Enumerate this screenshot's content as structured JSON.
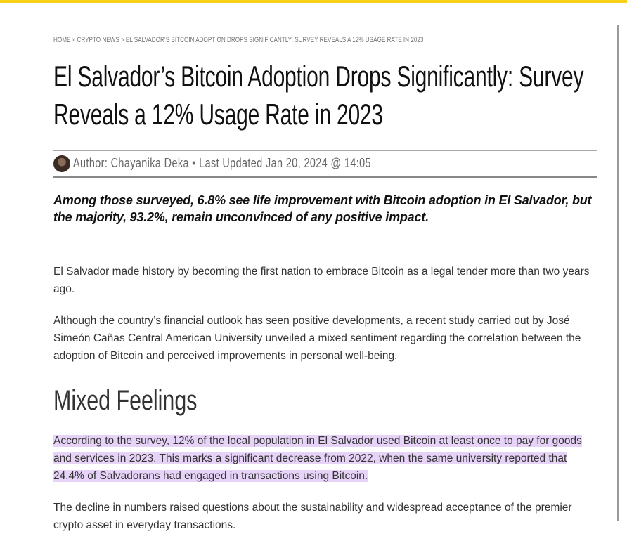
{
  "breadcrumb": {
    "items": [
      "HOME",
      "CRYPTO NEWS",
      "EL SALVADOR’S BITCOIN ADOPTION DROPS SIGNIFICANTLY: SURVEY REVEALS A 12% USAGE RATE IN 2023"
    ],
    "separator": "»"
  },
  "article": {
    "title": "El Salvador’s Bitcoin Adoption Drops Significantly: Survey Reveals a 12% Usage Rate in 2023",
    "byline": {
      "author": "Author: Chayanika Deka",
      "dot": "•",
      "updated": "Last Updated Jan 20, 2024 @ 14:05"
    },
    "summary": "Among those surveyed, 6.8% see life improvement with Bitcoin adoption in El Salvador, but the majority, 93.2%, remain unconvinced of any positive impact.",
    "paragraphs": [
      "El Salvador made history by becoming the first nation to embrace Bitcoin as a legal tender more than two years ago.",
      "Although the country’s financial outlook has seen positive developments, a recent study carried out by José Simeón Cañas Central American University unveiled a mixed sentiment regarding the correlation between the adoption of Bitcoin and perceived improvements in personal well-being."
    ],
    "heading": "Mixed Feelings",
    "highlighted_paragraph": "According to the survey, 12% of the local population in El Salvador used Bitcoin at least once to pay for goods and services in 2023. This marks a significant decrease from 2022, when the same university reported that 24.4% of Salvadorans had engaged in transactions using Bitcoin.",
    "last_paragraph": "The decline in numbers raised questions about the sustainability and widespread acceptance of the premier crypto asset in everyday transactions."
  }
}
